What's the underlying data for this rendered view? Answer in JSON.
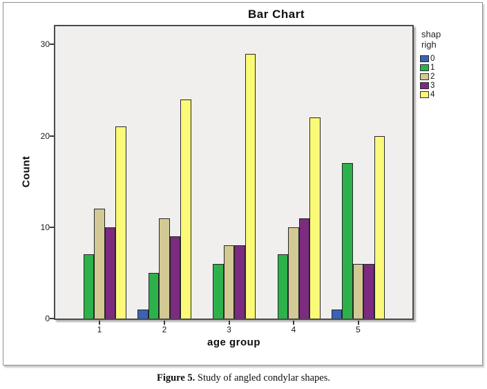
{
  "figure": {
    "caption_bold": "Figure 5.",
    "caption_text": " Study of angled condylar shapes."
  },
  "chart_data": {
    "type": "bar",
    "title": "Bar Chart",
    "xlabel": "age group",
    "ylabel": "Count",
    "categories": [
      "1",
      "2",
      "3",
      "4",
      "5"
    ],
    "series": [
      {
        "name": "0",
        "color": "#3a62b5",
        "values": [
          0,
          1,
          0,
          0,
          1
        ]
      },
      {
        "name": "1",
        "color": "#2cb14b",
        "values": [
          7,
          5,
          6,
          7,
          17
        ]
      },
      {
        "name": "2",
        "color": "#d2c995",
        "values": [
          12,
          11,
          8,
          10,
          6
        ]
      },
      {
        "name": "3",
        "color": "#7c2b80",
        "values": [
          10,
          9,
          8,
          11,
          6
        ]
      },
      {
        "name": "4",
        "color": "#fafa78",
        "values": [
          21,
          24,
          29,
          22,
          20
        ]
      }
    ],
    "legend_title_lines": [
      "shap",
      "righ"
    ],
    "legend_position": "right",
    "y_ticks": [
      0,
      10,
      20,
      30
    ],
    "ylim": [
      0,
      32
    ],
    "grid": false,
    "plot_bg": "#f0efed",
    "bar_outline": "#262626"
  }
}
